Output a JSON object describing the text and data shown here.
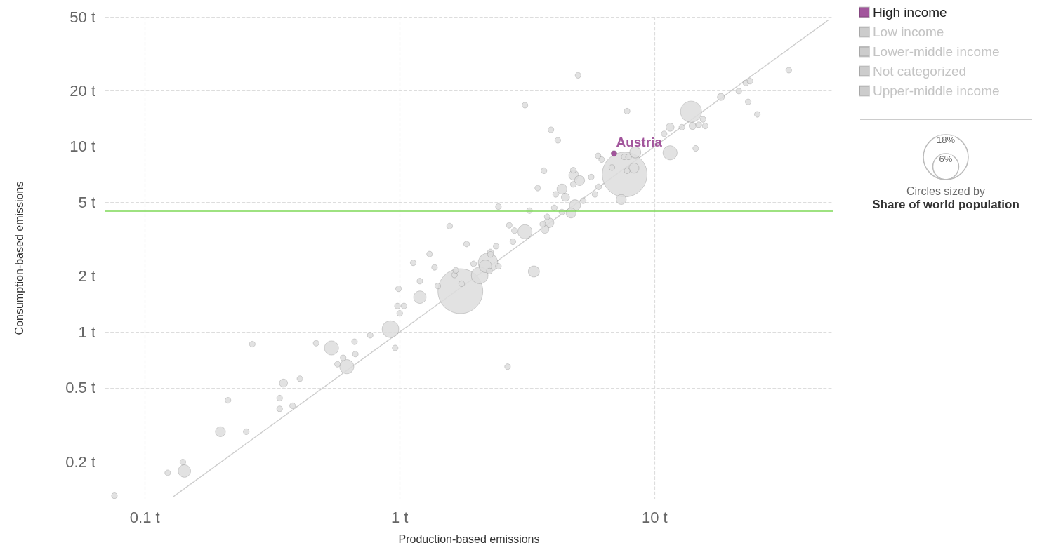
{
  "chart_data": {
    "type": "bubble",
    "xlabel": "Production-based emissions",
    "ylabel": "Consumption-based emissions",
    "log": "xy",
    "grid": true,
    "legend": "top right",
    "xlim": [
      0.07,
      50
    ],
    "ylim": [
      0.125,
      50
    ],
    "xticks": [
      {
        "value": 0.1,
        "label": "0.1 t"
      },
      {
        "value": 1,
        "label": "1 t"
      },
      {
        "value": 10,
        "label": "10 t"
      }
    ],
    "yticks": [
      {
        "value": 0.2,
        "label": "0.2 t"
      },
      {
        "value": 0.5,
        "label": "0.5 t"
      },
      {
        "value": 1,
        "label": "1 t"
      },
      {
        "value": 2,
        "label": "2 t"
      },
      {
        "value": 5,
        "label": "5 t"
      },
      {
        "value": 10,
        "label": "10 t"
      },
      {
        "value": 20,
        "label": "20 t"
      },
      {
        "value": 50,
        "label": "50 t"
      }
    ],
    "size_legend": [
      {
        "value": 18,
        "label": "18%"
      },
      {
        "value": 6,
        "label": "6%"
      }
    ],
    "annotations": [
      {
        "text": "Austria",
        "x": 6.93,
        "y": 9.17
      },
      "Circles sized by",
      "Share of world population"
    ],
    "ref_lines": [
      {
        "axis": "y",
        "value": 4.5,
        "label": null,
        "color": "#7ed957"
      }
    ],
    "series": [
      {
        "name": "High income",
        "color": "#a2559c",
        "x": [
          6.93
        ],
        "values": [
          9.17
        ],
        "sizes": [
          0.3
        ]
      },
      {
        "name": "Low income",
        "color": "#cccccc"
      },
      {
        "name": "Lower-middle income",
        "color": "#cccccc"
      },
      {
        "name": "Not categorized",
        "color": "#cccccc"
      },
      {
        "name": "Upper-middle income",
        "color": "#cccccc"
      },
      {
        "type": "line",
        "color": "#cccccc",
        "line_style": "dotted",
        "marker": "none",
        "x": [
          0.13,
          48
        ],
        "values": [
          0.13,
          48
        ]
      },
      {
        "color": "#dddddd",
        "x": [
          7.63,
          1.73,
          13.9,
          2.22,
          0.92,
          2.06,
          0.54,
          0.62,
          3.1,
          11.5,
          0.143,
          1.2,
          2.17,
          3.36,
          4.87,
          8.4,
          0.198,
          8.3,
          7.4,
          4.82,
          5.08,
          4.33,
          4.7,
          3.85,
          0.35,
          4.47,
          3.71,
          11.5,
          18.2,
          14.1,
          0.076,
          0.123,
          0.141,
          0.212,
          0.25,
          0.264,
          0.338,
          0.338,
          0.38,
          0.406,
          0.47,
          0.57,
          0.6,
          0.665,
          0.67,
          0.766,
          0.96,
          0.99,
          0.98,
          1.04,
          1.0,
          1.13,
          1.2,
          1.31,
          1.37,
          1.41,
          1.57,
          1.64,
          1.66,
          1.75,
          1.83,
          1.95,
          2.25,
          2.27,
          2.27,
          2.39,
          2.44,
          2.44,
          2.69,
          2.78,
          2.82,
          3.1,
          3.23,
          3.48,
          3.64,
          3.68,
          3.79,
          3.92,
          4.04,
          4.09,
          4.17,
          4.33,
          4.8,
          4.8,
          5.01,
          5.25,
          5.64,
          5.84,
          6.0,
          6.03,
          6.2,
          6.8,
          7.6,
          7.9,
          7.8,
          7.8,
          10.9,
          12.8,
          14.5,
          14.9,
          15.5,
          15.8,
          21.4,
          22.8,
          23.7,
          23.3,
          25.3,
          33.6,
          2.65
        ],
        "values": [
          7.06,
          1.66,
          15.4,
          2.36,
          1.035,
          2.02,
          0.82,
          0.65,
          3.47,
          9.25,
          0.178,
          1.54,
          2.26,
          2.12,
          4.82,
          9.3,
          0.29,
          7.65,
          5.18,
          7.0,
          6.55,
          5.9,
          4.38,
          3.88,
          0.53,
          5.33,
          3.58,
          12.7,
          18.5,
          12.9,
          0.131,
          0.174,
          0.199,
          0.428,
          0.29,
          0.86,
          0.44,
          0.385,
          0.4,
          0.56,
          0.87,
          0.67,
          0.725,
          0.886,
          0.76,
          0.96,
          0.82,
          1.71,
          1.38,
          1.38,
          1.26,
          2.36,
          1.88,
          2.63,
          2.23,
          1.77,
          3.72,
          2.03,
          2.15,
          1.82,
          2.98,
          2.33,
          2.13,
          2.7,
          2.62,
          2.9,
          2.26,
          4.74,
          3.76,
          3.07,
          3.52,
          16.7,
          4.51,
          5.97,
          3.81,
          7.4,
          4.18,
          12.3,
          4.67,
          5.52,
          10.8,
          4.43,
          7.45,
          6.25,
          24.2,
          5.1,
          6.84,
          5.52,
          8.9,
          6.06,
          8.5,
          7.7,
          8.8,
          8.8,
          7.4,
          15.5,
          11.7,
          12.7,
          9.77,
          13.1,
          14.0,
          12.9,
          19.9,
          22.0,
          22.5,
          17.4,
          14.9,
          25.8,
          0.65
        ],
        "sizes": [
          18,
          18,
          4,
          3.4,
          2.5,
          2.5,
          1.8,
          1.8,
          1.8,
          1.8,
          1.4,
          1.4,
          1.4,
          1.1,
          1.1,
          1.1,
          0.9,
          0.9,
          0.9,
          0.9,
          0.9,
          0.9,
          0.9,
          0.9,
          0.6,
          0.6,
          0.6,
          0.6,
          0.45,
          0.45,
          0.3,
          0.3,
          0.3,
          0.3,
          0.3,
          0.3,
          0.3,
          0.3,
          0.3,
          0.3,
          0.3,
          0.3,
          0.3,
          0.3,
          0.3,
          0.3,
          0.3,
          0.3,
          0.3,
          0.3,
          0.3,
          0.3,
          0.3,
          0.3,
          0.3,
          0.3,
          0.3,
          0.3,
          0.3,
          0.3,
          0.3,
          0.3,
          0.3,
          0.3,
          0.3,
          0.3,
          0.3,
          0.3,
          0.3,
          0.3,
          0.3,
          0.3,
          0.3,
          0.3,
          0.3,
          0.3,
          0.3,
          0.3,
          0.3,
          0.3,
          0.3,
          0.3,
          0.3,
          0.3,
          0.3,
          0.3,
          0.3,
          0.3,
          0.3,
          0.3,
          0.3,
          0.3,
          0.3,
          0.3,
          0.3,
          0.3,
          0.3,
          0.3,
          0.3,
          0.3,
          0.3,
          0.3,
          0.3,
          0.3,
          0.3,
          0.3,
          0.3,
          0.3,
          0.3
        ]
      }
    ]
  }
}
